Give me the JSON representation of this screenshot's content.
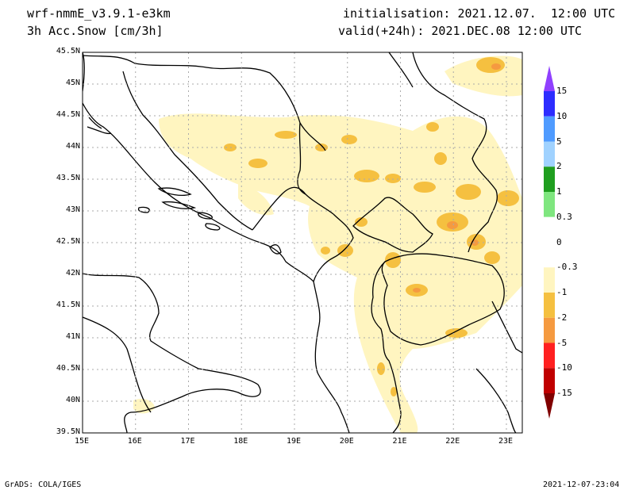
{
  "header": {
    "model": "wrf-nmmE_v3.9.1-e3km",
    "field": "3h Acc.Snow [cm/3h]",
    "init": "initialisation: 2021.12.07.  12:00 UTC",
    "valid": "valid(+24h): 2021.DEC.08 12:00 UTC"
  },
  "footer": {
    "left": "GrADS: COLA/IGES",
    "right": "2021-12-07-23:04"
  },
  "map": {
    "lon_labels": [
      "15E",
      "16E",
      "17E",
      "18E",
      "19E",
      "20E",
      "21E",
      "22E",
      "23E"
    ],
    "lat_labels": [
      "45.5N",
      "45N",
      "44.5N",
      "44N",
      "43.5N",
      "43N",
      "42.5N",
      "42N",
      "41.5N",
      "41N",
      "40.5N",
      "40N",
      "39.5N"
    ],
    "grid": true,
    "lon_range": [
      15,
      23.3
    ],
    "lat_range": [
      39.5,
      45.5
    ]
  },
  "colorbar": {
    "labels": [
      "15",
      "10",
      "5",
      "2",
      "1",
      "0.3",
      "0",
      "-0.3",
      "-1",
      "-2",
      "-5",
      "-10",
      "-15"
    ],
    "colors": [
      "#2d2dff",
      "#4f9bff",
      "#a0d2ff",
      "#1f9e1f",
      "#7fe67f",
      "#ffffff",
      "#ffffff",
      "#fff5c0",
      "#f5c040",
      "#f59a40",
      "#ff2020",
      "#c00000"
    ],
    "top_arrow_color": "#9040ff",
    "bottom_arrow_color": "#800000"
  },
  "snow_colors": {
    "light": "#fff5c0",
    "medium": "#f5c040",
    "heavy": "#f59a40"
  }
}
